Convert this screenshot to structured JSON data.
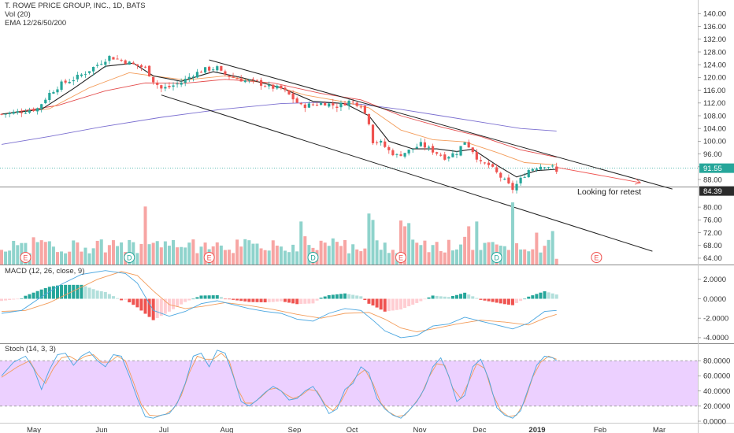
{
  "header": {
    "title": "T. ROWE PRICE GROUP, INC., 1D, BATS",
    "vol_label": "Vol (20)",
    "ema_label": "EMA 12/26/50/200"
  },
  "macd_label": "MACD (12, 26, close, 9)",
  "stoch_label": "Stoch (14, 3, 3)",
  "annotation": "Looking for retest",
  "colors": {
    "up": "#26a69a",
    "down": "#ef5350",
    "vol_up": "#8fd3cc",
    "vol_down": "#f7a5a3",
    "ema12": "#222222",
    "ema26": "#f39c5a",
    "ema50": "#e44d4d",
    "ema200": "#7b6fd0",
    "stoch_band": "#e9c8ff",
    "price_badge": "#26a69a",
    "prev_badge": "#2b2b2b"
  },
  "chart_data": [
    {
      "type": "candlestick",
      "title": "T. ROWE PRICE GROUP, INC., 1D, BATS",
      "x_ticks": [
        "May",
        "Jun",
        "Jul",
        "Aug",
        "Sep",
        "Oct",
        "Nov",
        "Dec",
        "2019",
        "Feb",
        "Mar"
      ],
      "y_ticks": [
        "140.00",
        "136.00",
        "132.00",
        "128.00",
        "124.00",
        "120.00",
        "116.00",
        "112.00",
        "108.00",
        "104.00",
        "100.00",
        "96.00",
        "92.00",
        "88.00"
      ],
      "ylim": [
        84,
        141.5
      ],
      "last_price_label": "91.55",
      "prev_price_label": "84.39",
      "close_path": [
        [
          0,
          108.5
        ],
        [
          3,
          109
        ],
        [
          6,
          109.5
        ],
        [
          9,
          110.3
        ],
        [
          12,
          115
        ],
        [
          15,
          118
        ],
        [
          18,
          119.5
        ],
        [
          21,
          121.5
        ],
        [
          24,
          124
        ],
        [
          27,
          126.5
        ],
        [
          30,
          125.5
        ],
        [
          33,
          124
        ],
        [
          36,
          123
        ],
        [
          38,
          119
        ],
        [
          40,
          116.5
        ],
        [
          42,
          117
        ],
        [
          45,
          118.5
        ],
        [
          48,
          121
        ],
        [
          51,
          122.5
        ],
        [
          54,
          123
        ],
        [
          55,
          121.5
        ],
        [
          58,
          120
        ],
        [
          61,
          119
        ],
        [
          64,
          118.5
        ],
        [
          67,
          117
        ],
        [
          70,
          116.5
        ],
        [
          72,
          114.5
        ],
        [
          75,
          111
        ],
        [
          78,
          111.5
        ],
        [
          81,
          112
        ],
        [
          84,
          111
        ],
        [
          87,
          112.5
        ],
        [
          90,
          111.5
        ],
        [
          92,
          106
        ],
        [
          93,
          100
        ],
        [
          95,
          99.5
        ],
        [
          97,
          97
        ],
        [
          99,
          95.5
        ],
        [
          102,
          97
        ],
        [
          105,
          99
        ],
        [
          108,
          97
        ],
        [
          111,
          95
        ],
        [
          114,
          96.5
        ],
        [
          116,
          100
        ],
        [
          118,
          97
        ],
        [
          120,
          93
        ],
        [
          122,
          92.5
        ],
        [
          124,
          90
        ],
        [
          126,
          87.5
        ],
        [
          128,
          85
        ],
        [
          130,
          88
        ],
        [
          132,
          91
        ],
        [
          134,
          92
        ],
        [
          136,
          92.5
        ],
        [
          138,
          91.8
        ],
        [
          139,
          90.2
        ]
      ],
      "ema12": [
        [
          0,
          108.5
        ],
        [
          10,
          110
        ],
        [
          18,
          116.5
        ],
        [
          26,
          123.5
        ],
        [
          33,
          124.5
        ],
        [
          38,
          120.5
        ],
        [
          45,
          118.8
        ],
        [
          53,
          121.8
        ],
        [
          60,
          120
        ],
        [
          70,
          116.8
        ],
        [
          78,
          112.5
        ],
        [
          86,
          111.8
        ],
        [
          92,
          108
        ],
        [
          97,
          100
        ],
        [
          103,
          97.6
        ],
        [
          109,
          97.6
        ],
        [
          114,
          96.8
        ],
        [
          118,
          97.5
        ],
        [
          124,
          92.5
        ],
        [
          129,
          88.8
        ],
        [
          134,
          90.8
        ],
        [
          139,
          91.2
        ]
      ],
      "ema26": [
        [
          0,
          108.5
        ],
        [
          12,
          110.2
        ],
        [
          22,
          116.8
        ],
        [
          32,
          121.5
        ],
        [
          38,
          120.5
        ],
        [
          46,
          119.2
        ],
        [
          56,
          120.5
        ],
        [
          66,
          118.2
        ],
        [
          76,
          114.5
        ],
        [
          86,
          112.3
        ],
        [
          92,
          110.5
        ],
        [
          100,
          103.5
        ],
        [
          108,
          100.5
        ],
        [
          116,
          99.8
        ],
        [
          124,
          96.5
        ],
        [
          131,
          93.3
        ],
        [
          139,
          92.6
        ]
      ],
      "ema50": [
        [
          0,
          108.5
        ],
        [
          14,
          111.2
        ],
        [
          26,
          115.8
        ],
        [
          36,
          118.3
        ],
        [
          46,
          118.2
        ],
        [
          56,
          119.4
        ],
        [
          68,
          118.3
        ],
        [
          80,
          115
        ],
        [
          90,
          113
        ],
        [
          100,
          108
        ],
        [
          110,
          104.5
        ],
        [
          120,
          101.5
        ],
        [
          130,
          97.3
        ],
        [
          139,
          95
        ]
      ],
      "ema200": [
        [
          0,
          99
        ],
        [
          12,
          101.5
        ],
        [
          25,
          104.5
        ],
        [
          40,
          107.5
        ],
        [
          55,
          110
        ],
        [
          70,
          111.8
        ],
        [
          80,
          112.2
        ],
        [
          90,
          111.6
        ],
        [
          100,
          110
        ],
        [
          110,
          108
        ],
        [
          120,
          106
        ],
        [
          130,
          104
        ],
        [
          139,
          103.2
        ]
      ],
      "channel_upper": [
        [
          52,
          125.5
        ],
        [
          168,
          85
        ]
      ],
      "channel_lower": [
        [
          40,
          114.5
        ],
        [
          163,
          65.5
        ]
      ],
      "projection": [
        [
          139,
          91.8
        ],
        [
          160,
          87
        ]
      ]
    },
    {
      "type": "bar",
      "title": "Vol (20)",
      "y_ticks": [
        "80.00",
        "76.00",
        "72.00",
        "68.00",
        "64.00"
      ],
      "ylim": [
        61,
        81
      ],
      "earnings_markers": [
        {
          "x": 6,
          "label": "E"
        },
        {
          "x": 52,
          "label": "E"
        },
        {
          "x": 100,
          "label": "E"
        },
        {
          "x": 149,
          "label": "E"
        }
      ],
      "dividend_markers": [
        {
          "x": 32,
          "label": "D"
        },
        {
          "x": 78,
          "label": "D"
        },
        {
          "x": 124,
          "label": "D"
        }
      ]
    },
    {
      "type": "line",
      "title": "MACD (12, 26, close, 9)",
      "y_ticks": [
        "2.0000",
        "0.0000",
        "-2.0000",
        "-4.0000"
      ],
      "ylim": [
        -4.8,
        3.2
      ],
      "macd": [
        [
          0,
          -1.5
        ],
        [
          5,
          -1.2
        ],
        [
          10,
          0.2
        ],
        [
          15,
          1.5
        ],
        [
          20,
          2.5
        ],
        [
          26,
          2.9
        ],
        [
          31,
          2.6
        ],
        [
          34,
          1.6
        ],
        [
          38,
          -1.2
        ],
        [
          42,
          -1.8
        ],
        [
          46,
          -1.3
        ],
        [
          50,
          -0.5
        ],
        [
          54,
          -0.2
        ],
        [
          58,
          -0.6
        ],
        [
          62,
          -1.0
        ],
        [
          66,
          -1.3
        ],
        [
          70,
          -1.5
        ],
        [
          74,
          -2.1
        ],
        [
          78,
          -2.3
        ],
        [
          82,
          -1.5
        ],
        [
          86,
          -1.0
        ],
        [
          90,
          -1.2
        ],
        [
          93,
          -2.2
        ],
        [
          96,
          -3.3
        ],
        [
          100,
          -4.0
        ],
        [
          104,
          -3.8
        ],
        [
          108,
          -2.8
        ],
        [
          112,
          -2.6
        ],
        [
          116,
          -1.9
        ],
        [
          120,
          -2.3
        ],
        [
          124,
          -2.7
        ],
        [
          128,
          -3.1
        ],
        [
          132,
          -2.5
        ],
        [
          136,
          -1.3
        ],
        [
          139,
          -1.2
        ]
      ],
      "signal": [
        [
          0,
          -1.3
        ],
        [
          6,
          -1.2
        ],
        [
          12,
          -0.4
        ],
        [
          18,
          0.8
        ],
        [
          24,
          2.0
        ],
        [
          30,
          2.8
        ],
        [
          34,
          2.4
        ],
        [
          38,
          0.8
        ],
        [
          42,
          -0.6
        ],
        [
          46,
          -1.0
        ],
        [
          50,
          -0.8
        ],
        [
          56,
          -0.4
        ],
        [
          62,
          -0.7
        ],
        [
          68,
          -1.1
        ],
        [
          74,
          -1.6
        ],
        [
          80,
          -2.0
        ],
        [
          86,
          -1.5
        ],
        [
          92,
          -1.4
        ],
        [
          96,
          -2.1
        ],
        [
          100,
          -3.0
        ],
        [
          104,
          -3.4
        ],
        [
          108,
          -3.1
        ],
        [
          114,
          -2.6
        ],
        [
          120,
          -2.2
        ],
        [
          126,
          -2.4
        ],
        [
          132,
          -2.7
        ],
        [
          136,
          -2.0
        ],
        [
          139,
          -1.6
        ]
      ]
    },
    {
      "type": "line",
      "title": "Stoch (14, 3, 3)",
      "y_ticks": [
        "80.0000",
        "60.0000",
        "40.0000",
        "20.0000",
        "0.0000"
      ],
      "ylim": [
        -3,
        100
      ],
      "band": [
        20,
        80
      ],
      "k": [
        [
          0,
          60
        ],
        [
          3,
          78
        ],
        [
          6,
          86
        ],
        [
          8,
          70
        ],
        [
          10,
          42
        ],
        [
          12,
          68
        ],
        [
          14,
          88
        ],
        [
          16,
          90
        ],
        [
          18,
          74
        ],
        [
          20,
          86
        ],
        [
          22,
          92
        ],
        [
          24,
          80
        ],
        [
          26,
          72
        ],
        [
          28,
          88
        ],
        [
          30,
          86
        ],
        [
          32,
          60
        ],
        [
          34,
          30
        ],
        [
          36,
          6
        ],
        [
          38,
          4
        ],
        [
          40,
          8
        ],
        [
          42,
          10
        ],
        [
          44,
          24
        ],
        [
          46,
          50
        ],
        [
          48,
          86
        ],
        [
          50,
          90
        ],
        [
          52,
          72
        ],
        [
          54,
          94
        ],
        [
          56,
          90
        ],
        [
          58,
          60
        ],
        [
          60,
          26
        ],
        [
          62,
          20
        ],
        [
          64,
          28
        ],
        [
          66,
          38
        ],
        [
          68,
          46
        ],
        [
          70,
          40
        ],
        [
          72,
          28
        ],
        [
          74,
          30
        ],
        [
          76,
          40
        ],
        [
          78,
          46
        ],
        [
          80,
          30
        ],
        [
          82,
          10
        ],
        [
          84,
          16
        ],
        [
          86,
          42
        ],
        [
          88,
          50
        ],
        [
          90,
          72
        ],
        [
          92,
          64
        ],
        [
          94,
          30
        ],
        [
          96,
          16
        ],
        [
          98,
          8
        ],
        [
          100,
          4
        ],
        [
          102,
          14
        ],
        [
          104,
          26
        ],
        [
          106,
          44
        ],
        [
          108,
          72
        ],
        [
          110,
          84
        ],
        [
          112,
          60
        ],
        [
          114,
          26
        ],
        [
          116,
          34
        ],
        [
          118,
          72
        ],
        [
          120,
          82
        ],
        [
          122,
          56
        ],
        [
          124,
          18
        ],
        [
          126,
          8
        ],
        [
          128,
          4
        ],
        [
          130,
          14
        ],
        [
          132,
          44
        ],
        [
          134,
          74
        ],
        [
          136,
          86
        ],
        [
          138,
          84
        ],
        [
          139,
          80
        ]
      ],
      "d": [
        [
          0,
          58
        ],
        [
          4,
          72
        ],
        [
          7,
          80
        ],
        [
          9,
          62
        ],
        [
          11,
          50
        ],
        [
          13,
          70
        ],
        [
          15,
          84
        ],
        [
          17,
          86
        ],
        [
          19,
          80
        ],
        [
          21,
          86
        ],
        [
          23,
          88
        ],
        [
          25,
          78
        ],
        [
          27,
          78
        ],
        [
          29,
          86
        ],
        [
          31,
          80
        ],
        [
          33,
          52
        ],
        [
          35,
          22
        ],
        [
          37,
          8
        ],
        [
          39,
          7
        ],
        [
          41,
          9
        ],
        [
          43,
          16
        ],
        [
          45,
          34
        ],
        [
          47,
          64
        ],
        [
          49,
          86
        ],
        [
          51,
          82
        ],
        [
          53,
          82
        ],
        [
          55,
          90
        ],
        [
          57,
          80
        ],
        [
          59,
          44
        ],
        [
          61,
          24
        ],
        [
          63,
          24
        ],
        [
          65,
          32
        ],
        [
          67,
          42
        ],
        [
          69,
          44
        ],
        [
          71,
          36
        ],
        [
          73,
          30
        ],
        [
          75,
          34
        ],
        [
          77,
          42
        ],
        [
          79,
          40
        ],
        [
          81,
          22
        ],
        [
          83,
          14
        ],
        [
          85,
          26
        ],
        [
          87,
          46
        ],
        [
          89,
          60
        ],
        [
          91,
          68
        ],
        [
          93,
          50
        ],
        [
          95,
          24
        ],
        [
          97,
          12
        ],
        [
          99,
          6
        ],
        [
          101,
          8
        ],
        [
          103,
          20
        ],
        [
          105,
          34
        ],
        [
          107,
          58
        ],
        [
          109,
          76
        ],
        [
          111,
          74
        ],
        [
          113,
          44
        ],
        [
          115,
          30
        ],
        [
          117,
          52
        ],
        [
          119,
          76
        ],
        [
          121,
          70
        ],
        [
          123,
          36
        ],
        [
          125,
          14
        ],
        [
          127,
          6
        ],
        [
          129,
          8
        ],
        [
          131,
          26
        ],
        [
          133,
          58
        ],
        [
          135,
          78
        ],
        [
          137,
          86
        ],
        [
          139,
          82
        ]
      ]
    }
  ]
}
